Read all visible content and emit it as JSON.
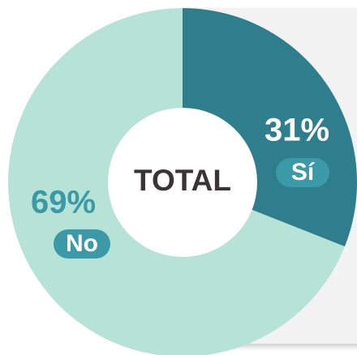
{
  "chart_data": {
    "type": "donut",
    "center_label": "TOTAL",
    "categories": [
      "Sí",
      "No"
    ],
    "values": [
      31,
      69
    ],
    "value_labels": [
      "31%",
      "69%"
    ],
    "colors": [
      "#2e7e8e",
      "#b6e3d5"
    ]
  }
}
